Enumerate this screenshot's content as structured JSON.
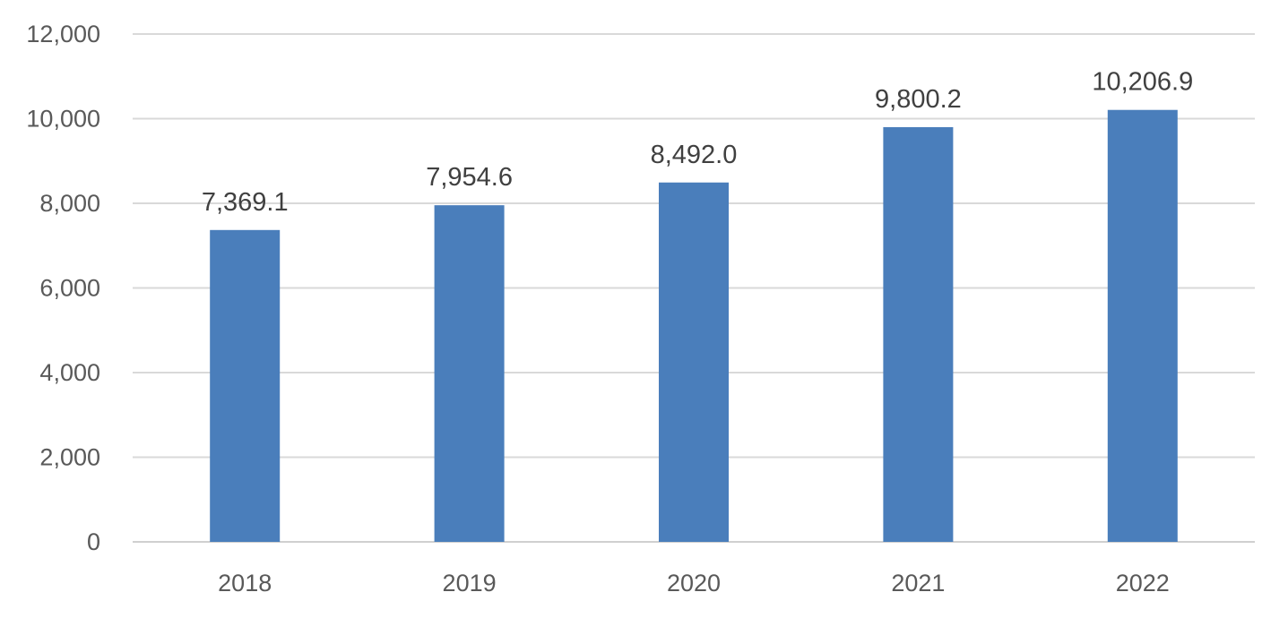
{
  "chart_data": {
    "type": "bar",
    "title": "",
    "xlabel": "",
    "ylabel": "",
    "categories": [
      "2018",
      "2019",
      "2020",
      "2021",
      "2022"
    ],
    "values": [
      7369.1,
      7954.6,
      8492.0,
      9800.2,
      10206.9
    ],
    "data_labels": [
      "7,369.1",
      "7,954.6",
      "8,492.0",
      "9,800.2",
      "10,206.9"
    ],
    "ylim": [
      0,
      12000
    ],
    "yticks": [
      0,
      2000,
      4000,
      6000,
      8000,
      10000,
      12000
    ],
    "ytick_labels": [
      "0",
      "2,000",
      "4,000",
      "6,000",
      "8,000",
      "10,000",
      "12,000"
    ],
    "grid": true,
    "legend": "none",
    "bar_color": "#4a7ebb"
  }
}
